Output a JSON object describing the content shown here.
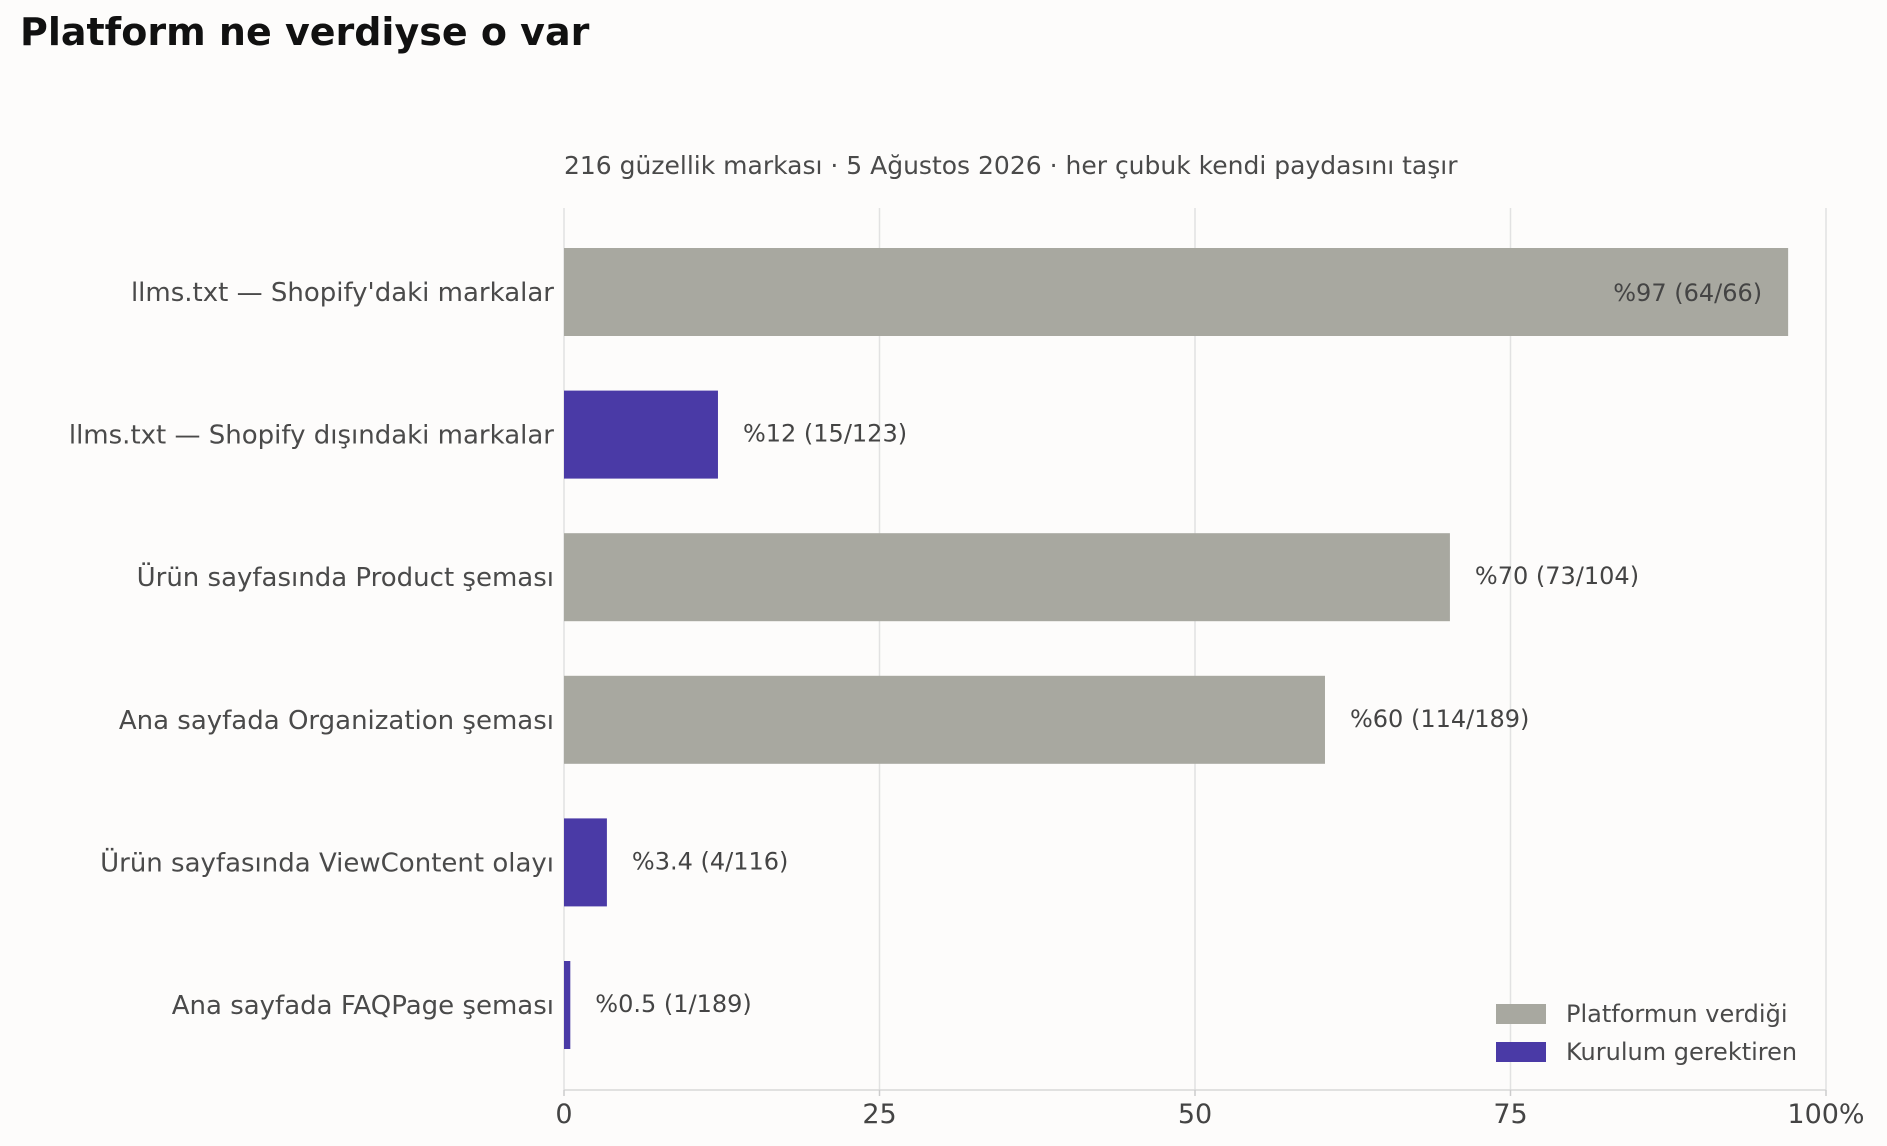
{
  "chart_data": {
    "type": "bar",
    "orientation": "horizontal",
    "title": "Platform ne verdiyse o var",
    "subtitle": "216 güzellik markası · 5 Ağustos 2026 · her çubuk kendi paydasını taşır",
    "xlabel": "",
    "ylabel": "",
    "xlim": [
      0,
      100
    ],
    "xticks": [
      {
        "value": 0,
        "label": "0"
      },
      {
        "value": 25,
        "label": "25"
      },
      {
        "value": 50,
        "label": "50"
      },
      {
        "value": 75,
        "label": "75"
      },
      {
        "value": 100,
        "label": "100%"
      }
    ],
    "grid": "vertical",
    "legend_position": "bottom-right",
    "series_styles": [
      {
        "key": "platform",
        "name": "Platformun verdiği",
        "color": "#a8a8a0"
      },
      {
        "key": "setup",
        "name": "Kurulum gerektiren",
        "color": "#4a3aa6"
      }
    ],
    "bars": [
      {
        "category": "llms.txt — Shopify'daki markalar",
        "value": 97,
        "label": "%97  (64/66)",
        "group": "platform"
      },
      {
        "category": "llms.txt — Shopify dışındaki markalar",
        "value": 12.2,
        "label": "%12  (15/123)",
        "group": "setup"
      },
      {
        "category": "Ürün sayfasında Product şeması",
        "value": 70.2,
        "label": "%70  (73/104)",
        "group": "platform"
      },
      {
        "category": "Ana sayfada Organization şeması",
        "value": 60.3,
        "label": "%60  (114/189)",
        "group": "platform"
      },
      {
        "category": "Ürün sayfasında ViewContent olayı",
        "value": 3.4,
        "label": "%3.4  (4/116)",
        "group": "setup"
      },
      {
        "category": "Ana sayfada FAQPage şeması",
        "value": 0.5,
        "label": "%0.5  (1/189)",
        "group": "setup"
      }
    ]
  }
}
